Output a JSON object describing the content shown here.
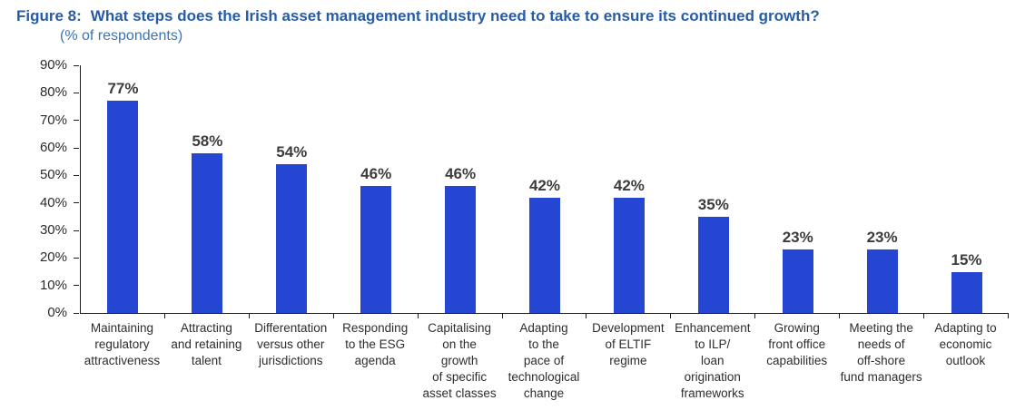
{
  "figure": {
    "label": "Figure 8:",
    "question": "What steps does the Irish asset management industry need to take to ensure its continued growth?",
    "subtitle": "(% of respondents)"
  },
  "chart_data": {
    "type": "bar",
    "title": "Figure 8: What steps does the Irish asset management industry need to take to ensure its continued growth?",
    "subtitle": "(% of respondents)",
    "categories": [
      "Maintaining regulatory attractiveness",
      "Attracting and retaining talent",
      "Differentation versus other jurisdictions",
      "Responding to the ESG agenda",
      "Capitalising on the growth of specific asset classes",
      "Adapting to the pace of technological change",
      "Development of ELTIF regime",
      "Enhancement to ILP/loan origination frameworks",
      "Growing front office capabilities",
      "Meeting the needs of off-shore fund managers",
      "Adapting to economic outlook"
    ],
    "category_label_lines": [
      [
        "Maintaining",
        "regulatory",
        "attractiveness"
      ],
      [
        "Attracting",
        "and retaining",
        "talent"
      ],
      [
        "Differentation",
        "versus other",
        "jurisdictions"
      ],
      [
        "Responding",
        "to the ESG",
        "agenda"
      ],
      [
        "Capitalising",
        "on the",
        "growth",
        "of specific",
        "asset classes"
      ],
      [
        "Adapting",
        "to the",
        "pace of",
        "technological",
        "change"
      ],
      [
        "Development",
        "of ELTIF",
        "regime"
      ],
      [
        "Enhancement",
        "to ILP/",
        "loan",
        "origination",
        "frameworks"
      ],
      [
        "Growing",
        "front office",
        "capabilities"
      ],
      [
        "Meeting the",
        "needs of",
        "off-shore",
        "fund managers"
      ],
      [
        "Adapting to",
        "economic",
        "outlook"
      ]
    ],
    "values": [
      77,
      58,
      54,
      46,
      46,
      42,
      42,
      35,
      23,
      23,
      15
    ],
    "value_labels": [
      "77%",
      "58%",
      "54%",
      "46%",
      "46%",
      "42%",
      "42%",
      "35%",
      "23%",
      "23%",
      "15%"
    ],
    "xlabel": "",
    "ylabel": "",
    "ylim": [
      0,
      90
    ],
    "y_tick_labels": [
      "0%",
      "10%",
      "20%",
      "30%",
      "40%",
      "50%",
      "60%",
      "70%",
      "80%",
      "90%"
    ],
    "grid": false,
    "legend": false,
    "colors": {
      "bar": "#2546d3",
      "title_text": "#275ba6",
      "subtitle_text": "#3b74b1",
      "value_label": "#3c3c3c",
      "category_label": "#2d2d2d",
      "axis": "#1c1c1c"
    }
  }
}
